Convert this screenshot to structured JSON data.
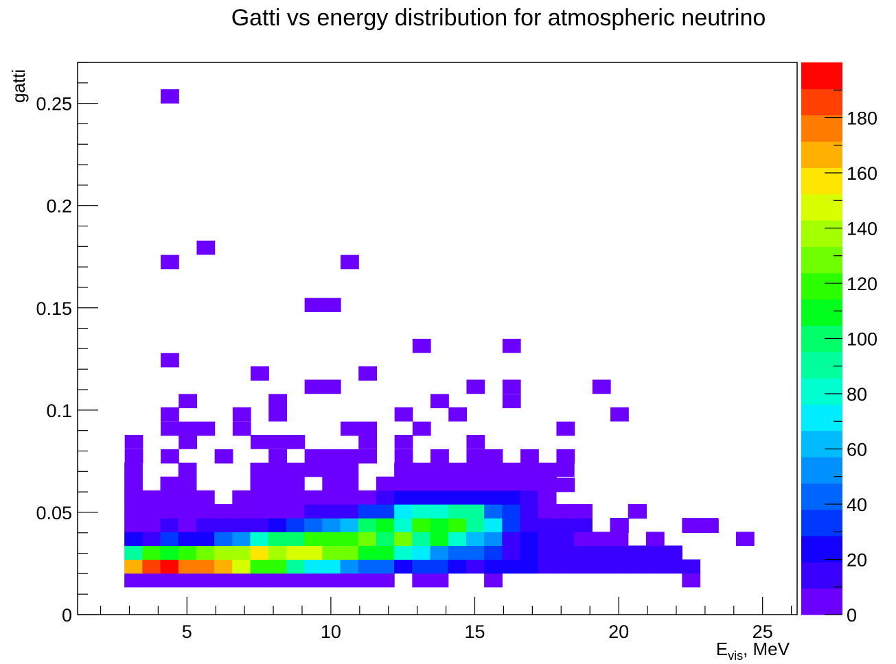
{
  "chart_data": {
    "type": "heatmap",
    "title": "Gatti vs energy distribution for atmospheric neutrino",
    "xlabel": {
      "main": "E",
      "sub": "vis",
      "rest": ", MeV"
    },
    "ylabel": "gatti",
    "xlim": [
      1.2,
      26.2
    ],
    "ylim": [
      0,
      0.27
    ],
    "x_ticks": [
      5,
      10,
      15,
      20,
      25
    ],
    "y_ticks": [
      0,
      0.05,
      0.1,
      0.15,
      0.2,
      0.25
    ],
    "y_tick_labels": [
      "0",
      "0.05",
      "0.1",
      "0.15",
      "0.2",
      "0.25"
    ],
    "bin_width_x": 0.625,
    "bin_width_y": 0.00675,
    "z_range": [
      0,
      200
    ],
    "z_ticks": [
      0,
      20,
      40,
      60,
      80,
      100,
      120,
      140,
      160,
      180
    ],
    "palette": [
      "#6b00ff",
      "#3a00ff",
      "#1400ff",
      "#0038ff",
      "#0064ff",
      "#0090ff",
      "#00bcff",
      "#00ecff",
      "#00ffd0",
      "#00ff9c",
      "#00ff68",
      "#00ff1c",
      "#2cff00",
      "#70ff00",
      "#a4ff00",
      "#d8ff00",
      "#ffe600",
      "#ffb000",
      "#ff7c00",
      "#ff4000",
      "#ff0400"
    ],
    "x_bin_starts": [
      2.825,
      3.45,
      4.075,
      4.7,
      5.325,
      5.95,
      6.575,
      7.2,
      7.825,
      8.45,
      9.075,
      9.7,
      10.325,
      10.95,
      11.575,
      12.2,
      12.825,
      13.45,
      14.075,
      14.7,
      15.325,
      15.95,
      16.575,
      17.2,
      17.825,
      18.45,
      19.075,
      19.7,
      20.325,
      20.95,
      21.575,
      22.2,
      22.825,
      23.45,
      24.075
    ],
    "rows": [
      {
        "y": 0.0135,
        "values": [
          2,
          2,
          2,
          2,
          2,
          2,
          2,
          2,
          2,
          2,
          2,
          2,
          2,
          2,
          2,
          0,
          2,
          2,
          0,
          0,
          2,
          0,
          0,
          0,
          0,
          0,
          0,
          0,
          0,
          0,
          0,
          2,
          0,
          0,
          0
        ]
      },
      {
        "y": 0.02025,
        "values": [
          170,
          190,
          195,
          180,
          180,
          170,
          150,
          120,
          115,
          90,
          70,
          70,
          55,
          45,
          45,
          20,
          30,
          30,
          25,
          15,
          20,
          20,
          20,
          15,
          10,
          10,
          15,
          10,
          10,
          10,
          10,
          10,
          0,
          0,
          0
        ]
      },
      {
        "y": 0.027,
        "values": [
          95,
          115,
          110,
          115,
          130,
          140,
          140,
          155,
          140,
          150,
          150,
          130,
          130,
          110,
          110,
          80,
          70,
          55,
          45,
          45,
          35,
          15,
          20,
          10,
          10,
          15,
          10,
          10,
          10,
          10,
          10,
          0,
          0,
          0,
          0
        ]
      },
      {
        "y": 0.03375,
        "values": [
          25,
          15,
          35,
          20,
          20,
          40,
          50,
          80,
          100,
          100,
          115,
          120,
          120,
          130,
          100,
          130,
          90,
          105,
          80,
          60,
          55,
          15,
          20,
          10,
          10,
          5,
          5,
          5,
          0,
          5,
          0,
          0,
          0,
          0,
          5
        ]
      },
      {
        "y": 0.0405,
        "values": [
          5,
          5,
          15,
          5,
          10,
          10,
          10,
          10,
          20,
          30,
          40,
          50,
          60,
          100,
          110,
          80,
          120,
          110,
          115,
          95,
          70,
          30,
          10,
          10,
          10,
          10,
          0,
          10,
          0,
          0,
          0,
          5,
          5,
          0,
          0
        ]
      },
      {
        "y": 0.04725,
        "values": [
          5,
          5,
          5,
          5,
          5,
          5,
          5,
          5,
          5,
          5,
          10,
          10,
          10,
          30,
          30,
          70,
          80,
          80,
          90,
          90,
          45,
          30,
          15,
          5,
          5,
          5,
          0,
          0,
          5,
          0,
          0,
          0,
          0,
          0,
          0
        ]
      },
      {
        "y": 0.054,
        "values": [
          5,
          5,
          5,
          5,
          5,
          0,
          5,
          5,
          5,
          5,
          5,
          5,
          5,
          5,
          10,
          20,
          20,
          25,
          25,
          25,
          25,
          25,
          10,
          5,
          0,
          0,
          0,
          0,
          0,
          0,
          0,
          0,
          0,
          0,
          0
        ]
      },
      {
        "y": 0.06075,
        "values": [
          5,
          0,
          5,
          5,
          0,
          0,
          0,
          5,
          5,
          5,
          0,
          5,
          5,
          0,
          5,
          5,
          5,
          5,
          5,
          5,
          5,
          5,
          5,
          5,
          0,
          0,
          0,
          0,
          0,
          0,
          0,
          0,
          0,
          0,
          0
        ]
      },
      {
        "y": 0.0675,
        "values": [
          5,
          0,
          0,
          5,
          0,
          0,
          0,
          5,
          5,
          5,
          5,
          5,
          5,
          0,
          0,
          5,
          5,
          5,
          5,
          5,
          5,
          5,
          5,
          5,
          5,
          0,
          0,
          0,
          0,
          0,
          0,
          0,
          0,
          0,
          0
        ]
      }
    ],
    "points": [
      [
        4.4,
        0.2535
      ],
      [
        5.65,
        0.1795
      ],
      [
        4.4,
        0.1725
      ],
      [
        10.65,
        0.1725
      ],
      [
        9.4,
        0.1515
      ],
      [
        10.025,
        0.1515
      ],
      [
        13.15,
        0.1315
      ],
      [
        16.275,
        0.1315
      ],
      [
        4.4,
        0.1245
      ],
      [
        7.525,
        0.118
      ],
      [
        11.275,
        0.118
      ],
      [
        9.4,
        0.1115
      ],
      [
        10.025,
        0.1115
      ],
      [
        15.025,
        0.1115
      ],
      [
        16.275,
        0.1115
      ],
      [
        19.4,
        0.1115
      ],
      [
        5.025,
        0.1045
      ],
      [
        8.15,
        0.1045
      ],
      [
        13.775,
        0.1045
      ],
      [
        16.275,
        0.1045
      ],
      [
        4.4,
        0.098
      ],
      [
        6.9,
        0.098
      ],
      [
        8.15,
        0.098
      ],
      [
        12.525,
        0.098
      ],
      [
        14.4,
        0.098
      ],
      [
        20.025,
        0.098
      ],
      [
        3.15,
        0.0845
      ],
      [
        4.4,
        0.091
      ],
      [
        5.025,
        0.091
      ],
      [
        5.65,
        0.091
      ],
      [
        6.9,
        0.091
      ],
      [
        10.65,
        0.091
      ],
      [
        11.275,
        0.091
      ],
      [
        13.15,
        0.091
      ],
      [
        18.15,
        0.091
      ],
      [
        5.025,
        0.0845
      ],
      [
        7.525,
        0.0845
      ],
      [
        8.15,
        0.0845
      ],
      [
        8.775,
        0.0845
      ],
      [
        11.275,
        0.0845
      ],
      [
        12.525,
        0.0845
      ],
      [
        15.025,
        0.0845
      ],
      [
        3.15,
        0.0775
      ],
      [
        4.4,
        0.0775
      ],
      [
        6.275,
        0.0775
      ],
      [
        8.15,
        0.0775
      ],
      [
        9.4,
        0.0775
      ],
      [
        10.025,
        0.0775
      ],
      [
        10.65,
        0.0775
      ],
      [
        11.275,
        0.0775
      ],
      [
        12.525,
        0.0775
      ],
      [
        13.775,
        0.0775
      ],
      [
        15.025,
        0.0775
      ],
      [
        15.65,
        0.0775
      ],
      [
        16.9,
        0.0775
      ],
      [
        18.15,
        0.0775
      ],
      [
        17.525,
        0.0705
      ],
      [
        18.15,
        0.0635
      ],
      [
        20.65,
        0.0505
      ],
      [
        20.025,
        0.0435
      ],
      [
        22.525,
        0.0435
      ],
      [
        23.15,
        0.0435
      ]
    ]
  }
}
